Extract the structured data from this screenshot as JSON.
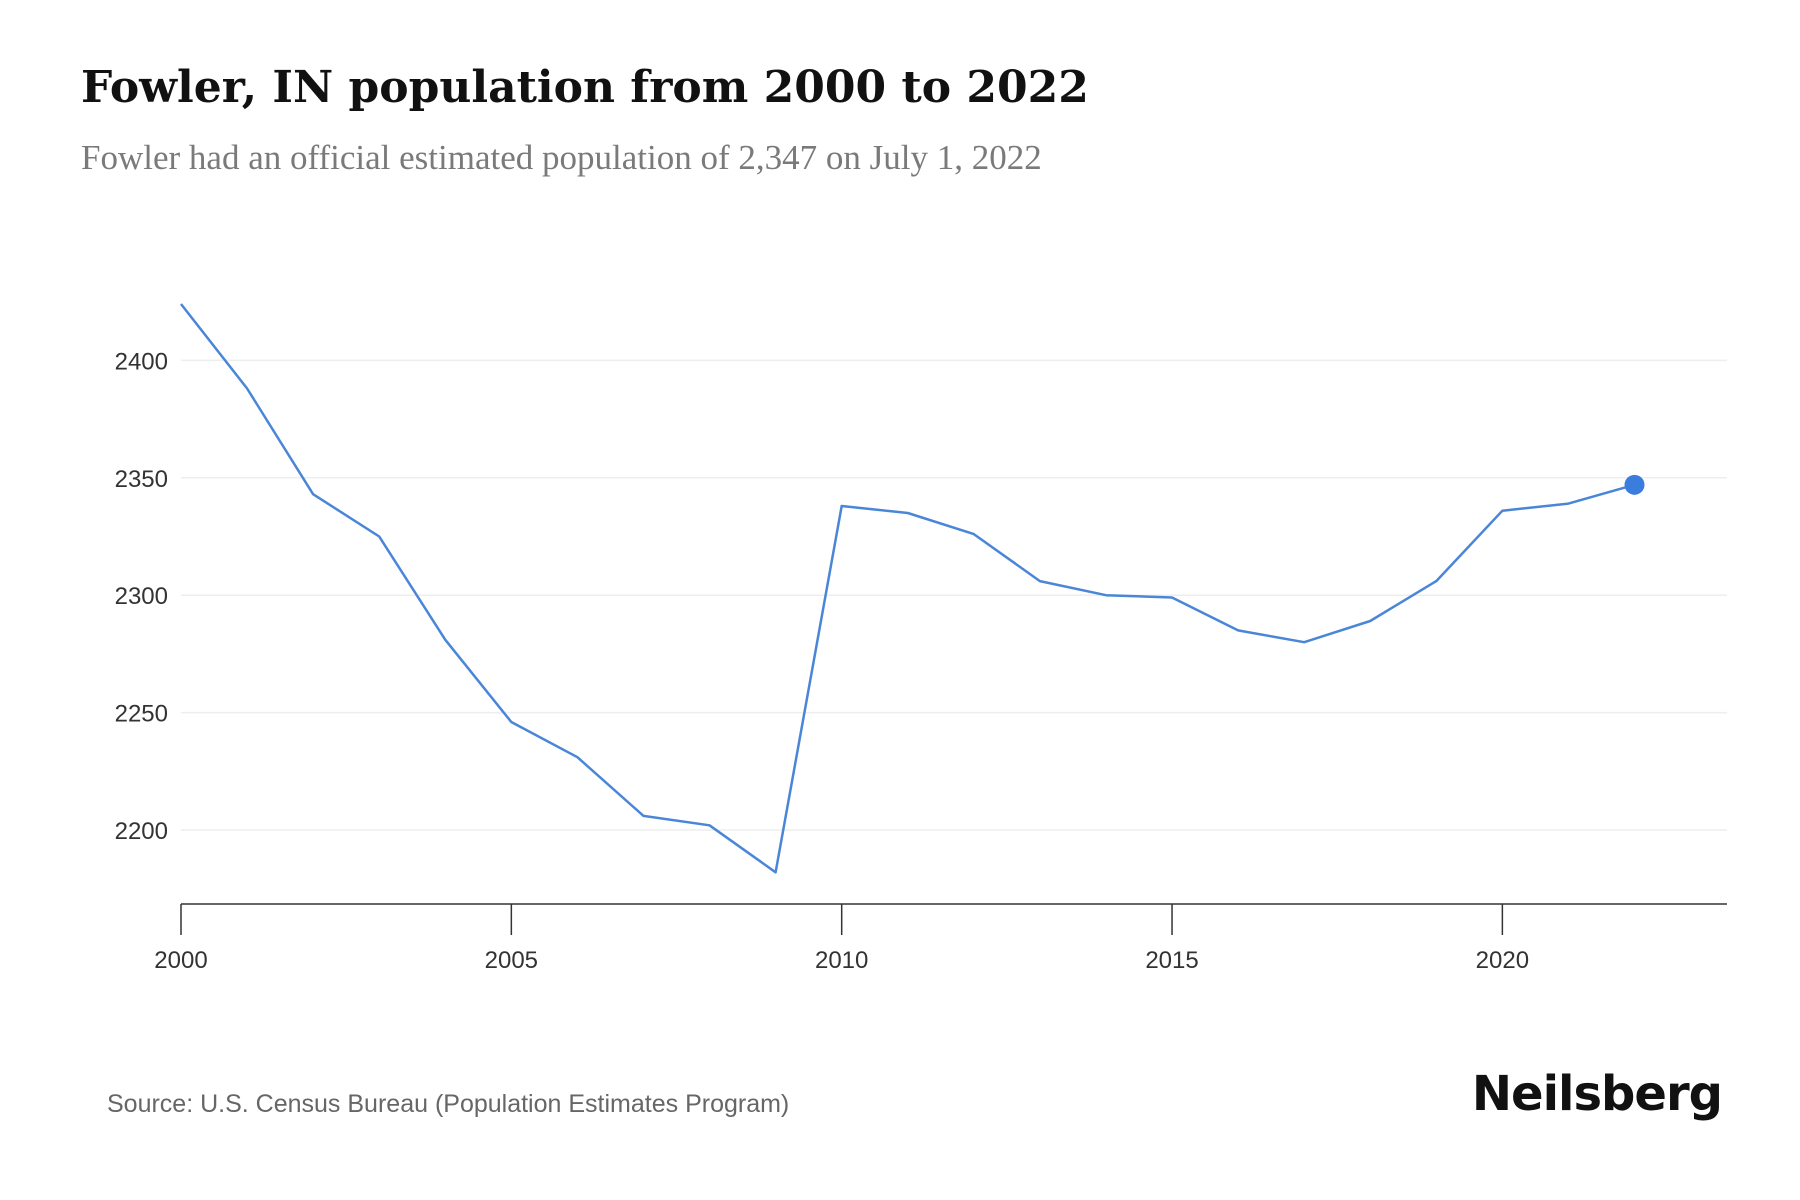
{
  "title": "Fowler, IN population from 2000 to 2022",
  "subtitle": "Fowler had an official estimated population of 2,347 on July 1, 2022",
  "source": "Source: U.S. Census Bureau (Population Estimates Program)",
  "brand": "Neilsberg",
  "colors": {
    "line": "#4a86d8",
    "marker": "#3b7ddd",
    "grid": "#eeeeee",
    "axis": "#333333"
  },
  "chart_data": {
    "type": "line",
    "title": "Fowler, IN population from 2000 to 2022",
    "subtitle": "Fowler had an official estimated population of 2,347 on July 1, 2022",
    "xlabel": "",
    "ylabel": "",
    "x": [
      2000,
      2001,
      2002,
      2003,
      2004,
      2005,
      2006,
      2007,
      2008,
      2009,
      2010,
      2011,
      2012,
      2013,
      2014,
      2015,
      2016,
      2017,
      2018,
      2019,
      2020,
      2021,
      2022
    ],
    "values": [
      2424,
      2388,
      2343,
      2325,
      2281,
      2246,
      2231,
      2206,
      2202,
      2182,
      2338,
      2335,
      2326,
      2306,
      2300,
      2299,
      2285,
      2280,
      2289,
      2306,
      2336,
      2339,
      2347
    ],
    "xlim": [
      2000,
      2023.4
    ],
    "ylim": [
      2168.5,
      2424
    ],
    "xticks": [
      2000,
      2005,
      2010,
      2015,
      2020
    ],
    "yticks": [
      2200,
      2250,
      2300,
      2350,
      2400
    ],
    "grid": true,
    "highlight_last_point": true
  }
}
